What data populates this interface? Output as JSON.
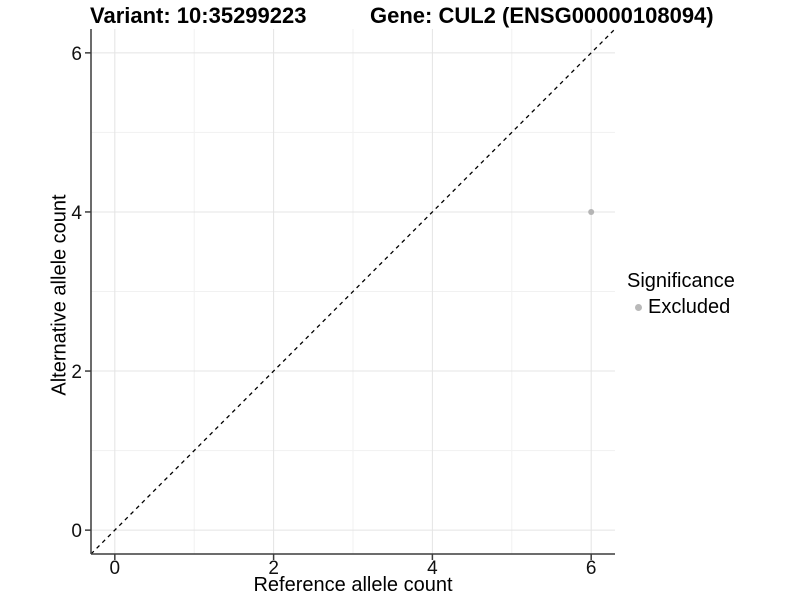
{
  "header": {
    "variant_title": "Variant: 10:35299223",
    "gene_title": "Gene: CUL2 (ENSG00000108094)"
  },
  "chart_data": {
    "type": "scatter",
    "title": "Variant: 10:35299223 — Gene: CUL2 (ENSG00000108094)",
    "xlabel": "Reference allele count",
    "ylabel": "Alternative allele count",
    "xlim": [
      -0.3,
      6.3
    ],
    "ylim": [
      -0.3,
      6.3
    ],
    "x_major_ticks": [
      0,
      2,
      4,
      6
    ],
    "y_major_ticks": [
      0,
      2,
      4,
      6
    ],
    "x_minor_ticks": [
      1,
      3,
      5
    ],
    "y_minor_ticks": [
      1,
      3,
      5
    ],
    "grid": "major and minor gridlines, white background",
    "reference_line": {
      "type": "identity y=x",
      "style": "dashed",
      "color": "#000000"
    },
    "series": [
      {
        "name": "Excluded",
        "color": "#b5b5b5",
        "point_radius": 3,
        "points": [
          {
            "x": 6,
            "y": 4
          }
        ]
      }
    ],
    "legend": {
      "title": "Significance",
      "position": "right",
      "items": [
        {
          "label": "Excluded",
          "color": "#b9b9b9"
        }
      ]
    }
  },
  "colors": {
    "background": "#ffffff",
    "axis_line": "#3c3c3c",
    "tick_label": "#111111",
    "grid_major": "#e4e4e4",
    "grid_minor": "#f1f1f1"
  }
}
